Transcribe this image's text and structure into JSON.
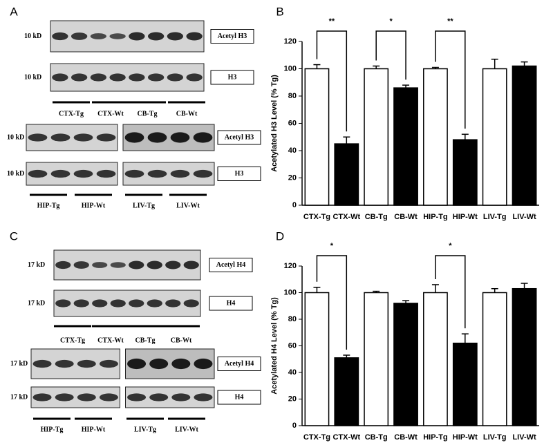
{
  "chart_data": [
    {
      "type": "bar",
      "panel_label": "B",
      "ylabel": "Acetylated H3 Level (% Tg)",
      "categories": [
        "CTX-Tg",
        "CTX-Wt",
        "CB-Tg",
        "CB-Wt",
        "HIP-Tg",
        "HIP-Wt",
        "LIV-Tg",
        "LIV-Wt"
      ],
      "values": [
        100,
        45,
        100,
        86,
        100,
        48,
        100,
        102
      ],
      "errors": [
        3,
        5,
        2,
        2,
        1,
        4,
        7,
        3
      ],
      "colors": [
        "#ffffff",
        "#000000",
        "#ffffff",
        "#000000",
        "#ffffff",
        "#000000",
        "#ffffff",
        "#000000"
      ],
      "significance": [
        "**",
        "*",
        "**",
        null
      ],
      "ylim": [
        0,
        120
      ],
      "yticks": [
        0,
        20,
        40,
        60,
        80,
        100,
        120
      ]
    },
    {
      "type": "bar",
      "panel_label": "D",
      "ylabel": "Acetylated H4 Level (% Tg)",
      "categories": [
        "CTX-Tg",
        "CTX-Wt",
        "CB-Tg",
        "CB-Wt",
        "HIP-Tg",
        "HIP-Wt",
        "LIV-Tg",
        "LIV-Wt"
      ],
      "values": [
        100,
        51,
        100,
        92,
        100,
        62,
        100,
        103
      ],
      "errors": [
        4,
        2,
        1,
        2,
        6,
        7,
        3,
        4
      ],
      "colors": [
        "#ffffff",
        "#000000",
        "#ffffff",
        "#000000",
        "#ffffff",
        "#000000",
        "#ffffff",
        "#000000"
      ],
      "significance": [
        "*",
        null,
        "*",
        null
      ],
      "ylim": [
        0,
        120
      ],
      "yticks": [
        0,
        20,
        40,
        60,
        80,
        100,
        120
      ]
    }
  ],
  "blots": [
    {
      "panel_label": "A",
      "top": {
        "rows": [
          {
            "marker": "10 kD",
            "label": "Acetyl H3"
          },
          {
            "marker": "10 kD",
            "label": "H3"
          }
        ],
        "lanes": [
          "CTX-Tg",
          "CTX-Wt",
          "CB-Tg",
          "CB-Wt"
        ]
      },
      "bottom": {
        "rows": [
          {
            "marker": "10 kD",
            "label": "Acetyl H3"
          },
          {
            "marker": "10 kD",
            "label": "H3"
          }
        ],
        "lanes": [
          "HIP-Tg",
          "HIP-Wt",
          "LIV-Tg",
          "LIV-Wt"
        ]
      }
    },
    {
      "panel_label": "C",
      "top": {
        "rows": [
          {
            "marker": "17 kD",
            "label": "Acetyl H4"
          },
          {
            "marker": "17 kD",
            "label": "H4"
          }
        ],
        "lanes": [
          "CTX-Tg",
          "CTX-Wt",
          "CB-Tg",
          "CB-Wt"
        ]
      },
      "bottom": {
        "rows": [
          {
            "marker": "17 kD",
            "label": "Acetyl H4"
          },
          {
            "marker": "17 kD",
            "label": "H4"
          }
        ],
        "lanes": [
          "HIP-Tg",
          "HIP-Wt",
          "LIV-Tg",
          "LIV-Wt"
        ]
      }
    }
  ]
}
